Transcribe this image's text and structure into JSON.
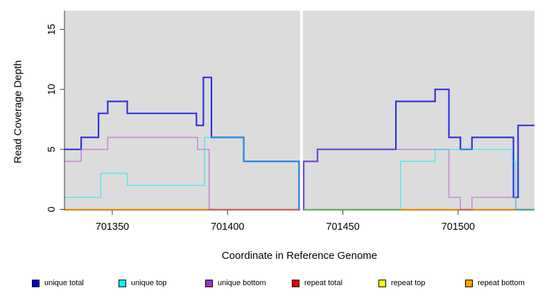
{
  "figure": {
    "xlabel": "Coordinate in Reference Genome",
    "ylabel": "Read Coverage Depth",
    "panel_bg": "#DCDCDC",
    "axis_color": "#333333",
    "gap_fill": "#FFFFFF"
  },
  "chart_data": {
    "type": "line",
    "subtype": "step-after-coverage",
    "title": "",
    "xlabel": "Coordinate in Reference Genome",
    "ylabel": "Read Coverage Depth",
    "x_ticks": [
      701350,
      701400,
      701450,
      701500
    ],
    "x_tick_labels": [
      "701350",
      "701400",
      "701450",
      "701500"
    ],
    "y_ticks": [
      0,
      5,
      10,
      15
    ],
    "y_tick_labels": [
      "0",
      "5",
      "10",
      "15"
    ],
    "x_range": [
      701329.4,
      701533.1
    ],
    "y_range": [
      0,
      16.53
    ],
    "grid": false,
    "legend_position": "bottom",
    "no_data_gap_x": [
      701431,
      701433
    ],
    "series": [
      {
        "name": "unique total",
        "color": "#0000DD",
        "alpha": 0.78,
        "width": 2.2,
        "blocks": [
          [
            [
              701329.4,
              5
            ],
            [
              701336.5,
              6
            ],
            [
              701344,
              8
            ],
            [
              701348,
              9
            ],
            [
              701356.5,
              8
            ],
            [
              701386.5,
              7
            ],
            [
              701389.5,
              11
            ],
            [
              701393,
              6
            ],
            [
              701407,
              4
            ],
            [
              701431,
              0
            ]
          ],
          [
            [
              701433,
              0
            ],
            [
              701433,
              4
            ],
            [
              701439,
              5
            ],
            [
              701473,
              9
            ],
            [
              701490,
              10
            ],
            [
              701496,
              6
            ],
            [
              701501,
              5
            ],
            [
              701506,
              6
            ],
            [
              701524,
              1
            ],
            [
              701526,
              7
            ],
            [
              701533.1,
              7
            ]
          ]
        ]
      },
      {
        "name": "unique top",
        "color": "#00EEEE",
        "alpha": 0.55,
        "width": 1.7,
        "blocks": [
          [
            [
              701329.4,
              1
            ],
            [
              701345,
              3
            ],
            [
              701356.5,
              2
            ],
            [
              701390,
              6
            ],
            [
              701407,
              4
            ],
            [
              701431,
              0
            ]
          ],
          [
            [
              701433,
              0
            ],
            [
              701475,
              4
            ],
            [
              701490,
              5
            ],
            [
              701523.5,
              4
            ],
            [
              701525,
              0
            ],
            [
              701533.1,
              0
            ]
          ]
        ]
      },
      {
        "name": "unique bottom",
        "color": "#BA55D3",
        "alpha": 0.58,
        "width": 1.7,
        "blocks": [
          [
            [
              701329.4,
              4
            ],
            [
              701336.5,
              5
            ],
            [
              701348,
              6
            ],
            [
              701387,
              5
            ],
            [
              701392,
              0
            ],
            [
              701431,
              0
            ]
          ],
          [
            [
              701433,
              0
            ],
            [
              701433,
              4
            ],
            [
              701439,
              5
            ],
            [
              701496,
              1
            ],
            [
              701501,
              0
            ],
            [
              701506,
              1
            ],
            [
              701525,
              0
            ],
            [
              701533.1,
              0
            ]
          ]
        ]
      },
      {
        "name": "repeat total",
        "color": "#FF0000",
        "alpha": 0.6,
        "width": 1.7,
        "blocks": [
          [
            [
              701329.4,
              0
            ],
            [
              701431,
              0
            ]
          ],
          [
            [
              701433,
              0
            ],
            [
              701533.1,
              0
            ]
          ]
        ]
      },
      {
        "name": "repeat top",
        "color": "#FFFF00",
        "alpha": 0.6,
        "width": 1.7,
        "blocks": [
          [
            [
              701329.4,
              0
            ],
            [
              701431,
              0
            ]
          ],
          [
            [
              701433,
              0
            ],
            [
              701533.1,
              0
            ]
          ]
        ]
      },
      {
        "name": "repeat bottom",
        "color": "#FFA500",
        "alpha": 0.9,
        "width": 1.7,
        "blocks": [
          [
            [
              701329.4,
              0
            ],
            [
              701431,
              0
            ]
          ],
          [
            [
              701433,
              0
            ],
            [
              701533.1,
              0
            ]
          ]
        ]
      }
    ],
    "paint_order": [
      "repeat total",
      "repeat top",
      "repeat bottom",
      "unique total",
      "unique bottom",
      "unique top"
    ]
  },
  "legend": {
    "items": [
      {
        "label": "unique total",
        "color": "#0000CD"
      },
      {
        "label": "unique top",
        "color": "#00FFFF"
      },
      {
        "label": "unique bottom",
        "color": "#9B30D0"
      },
      {
        "label": "repeat total",
        "color": "#EE0000"
      },
      {
        "label": "repeat top",
        "color": "#FFFF00"
      },
      {
        "label": "repeat bottom",
        "color": "#FFA500"
      }
    ]
  }
}
